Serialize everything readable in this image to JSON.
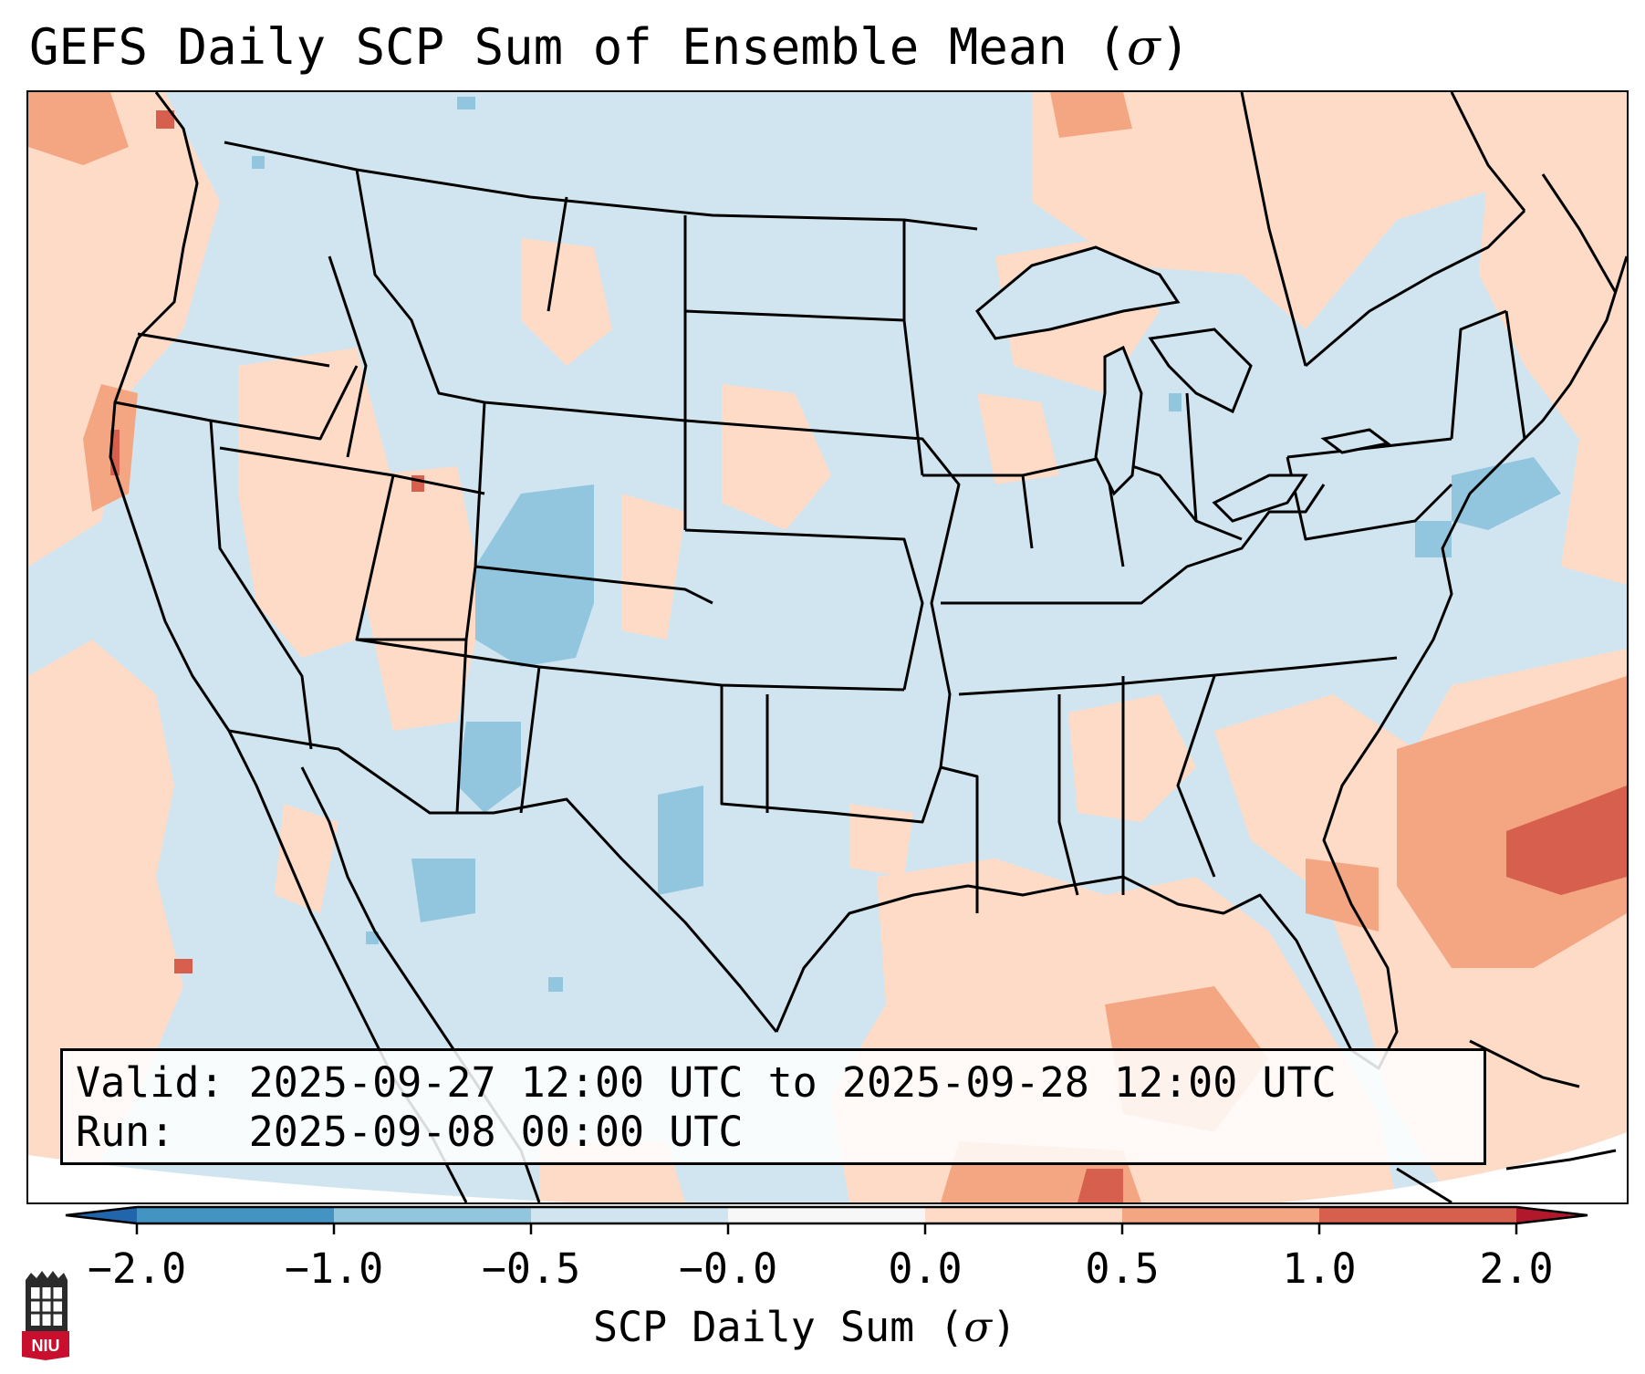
{
  "title": {
    "text": "GEFS Daily SCP Sum of Ensemble Mean (",
    "symbol": "σ",
    "close": ")"
  },
  "info_box": {
    "valid_label": "Valid:",
    "valid_value": "2025-09-27 12:00 UTC to 2025-09-28 12:00 UTC",
    "run_label": "Run:",
    "run_value": "2025-09-08 00:00 UTC"
  },
  "colorbar": {
    "label_text": "SCP Daily Sum (",
    "label_symbol": "σ",
    "label_close": ")",
    "tick_labels": [
      "−2.0",
      "−1.0",
      "−0.5",
      "−0.0",
      "0.0",
      "0.5",
      "1.0",
      "2.0"
    ],
    "colors": {
      "under": "#2166ac",
      "bin_m2_m1": "#4393c3",
      "bin_m1_m05": "#92c5de",
      "bin_m05_m0": "#d1e5f0",
      "bin_zero": "#f7f7f7",
      "bin_0_05": "#fddbc7",
      "bin_05_1": "#f4a582",
      "bin_1_2": "#d6604d",
      "over": "#b2182b"
    }
  },
  "logo": {
    "text": "NIU",
    "color": "#c8102e"
  },
  "map_colors": {
    "background_land": "#d1e5f0",
    "positive_low": "#fddbc7",
    "positive_mid": "#f4a582",
    "positive_high": "#d6604d",
    "negative_mid": "#92c5de",
    "border_line": "#000000"
  }
}
